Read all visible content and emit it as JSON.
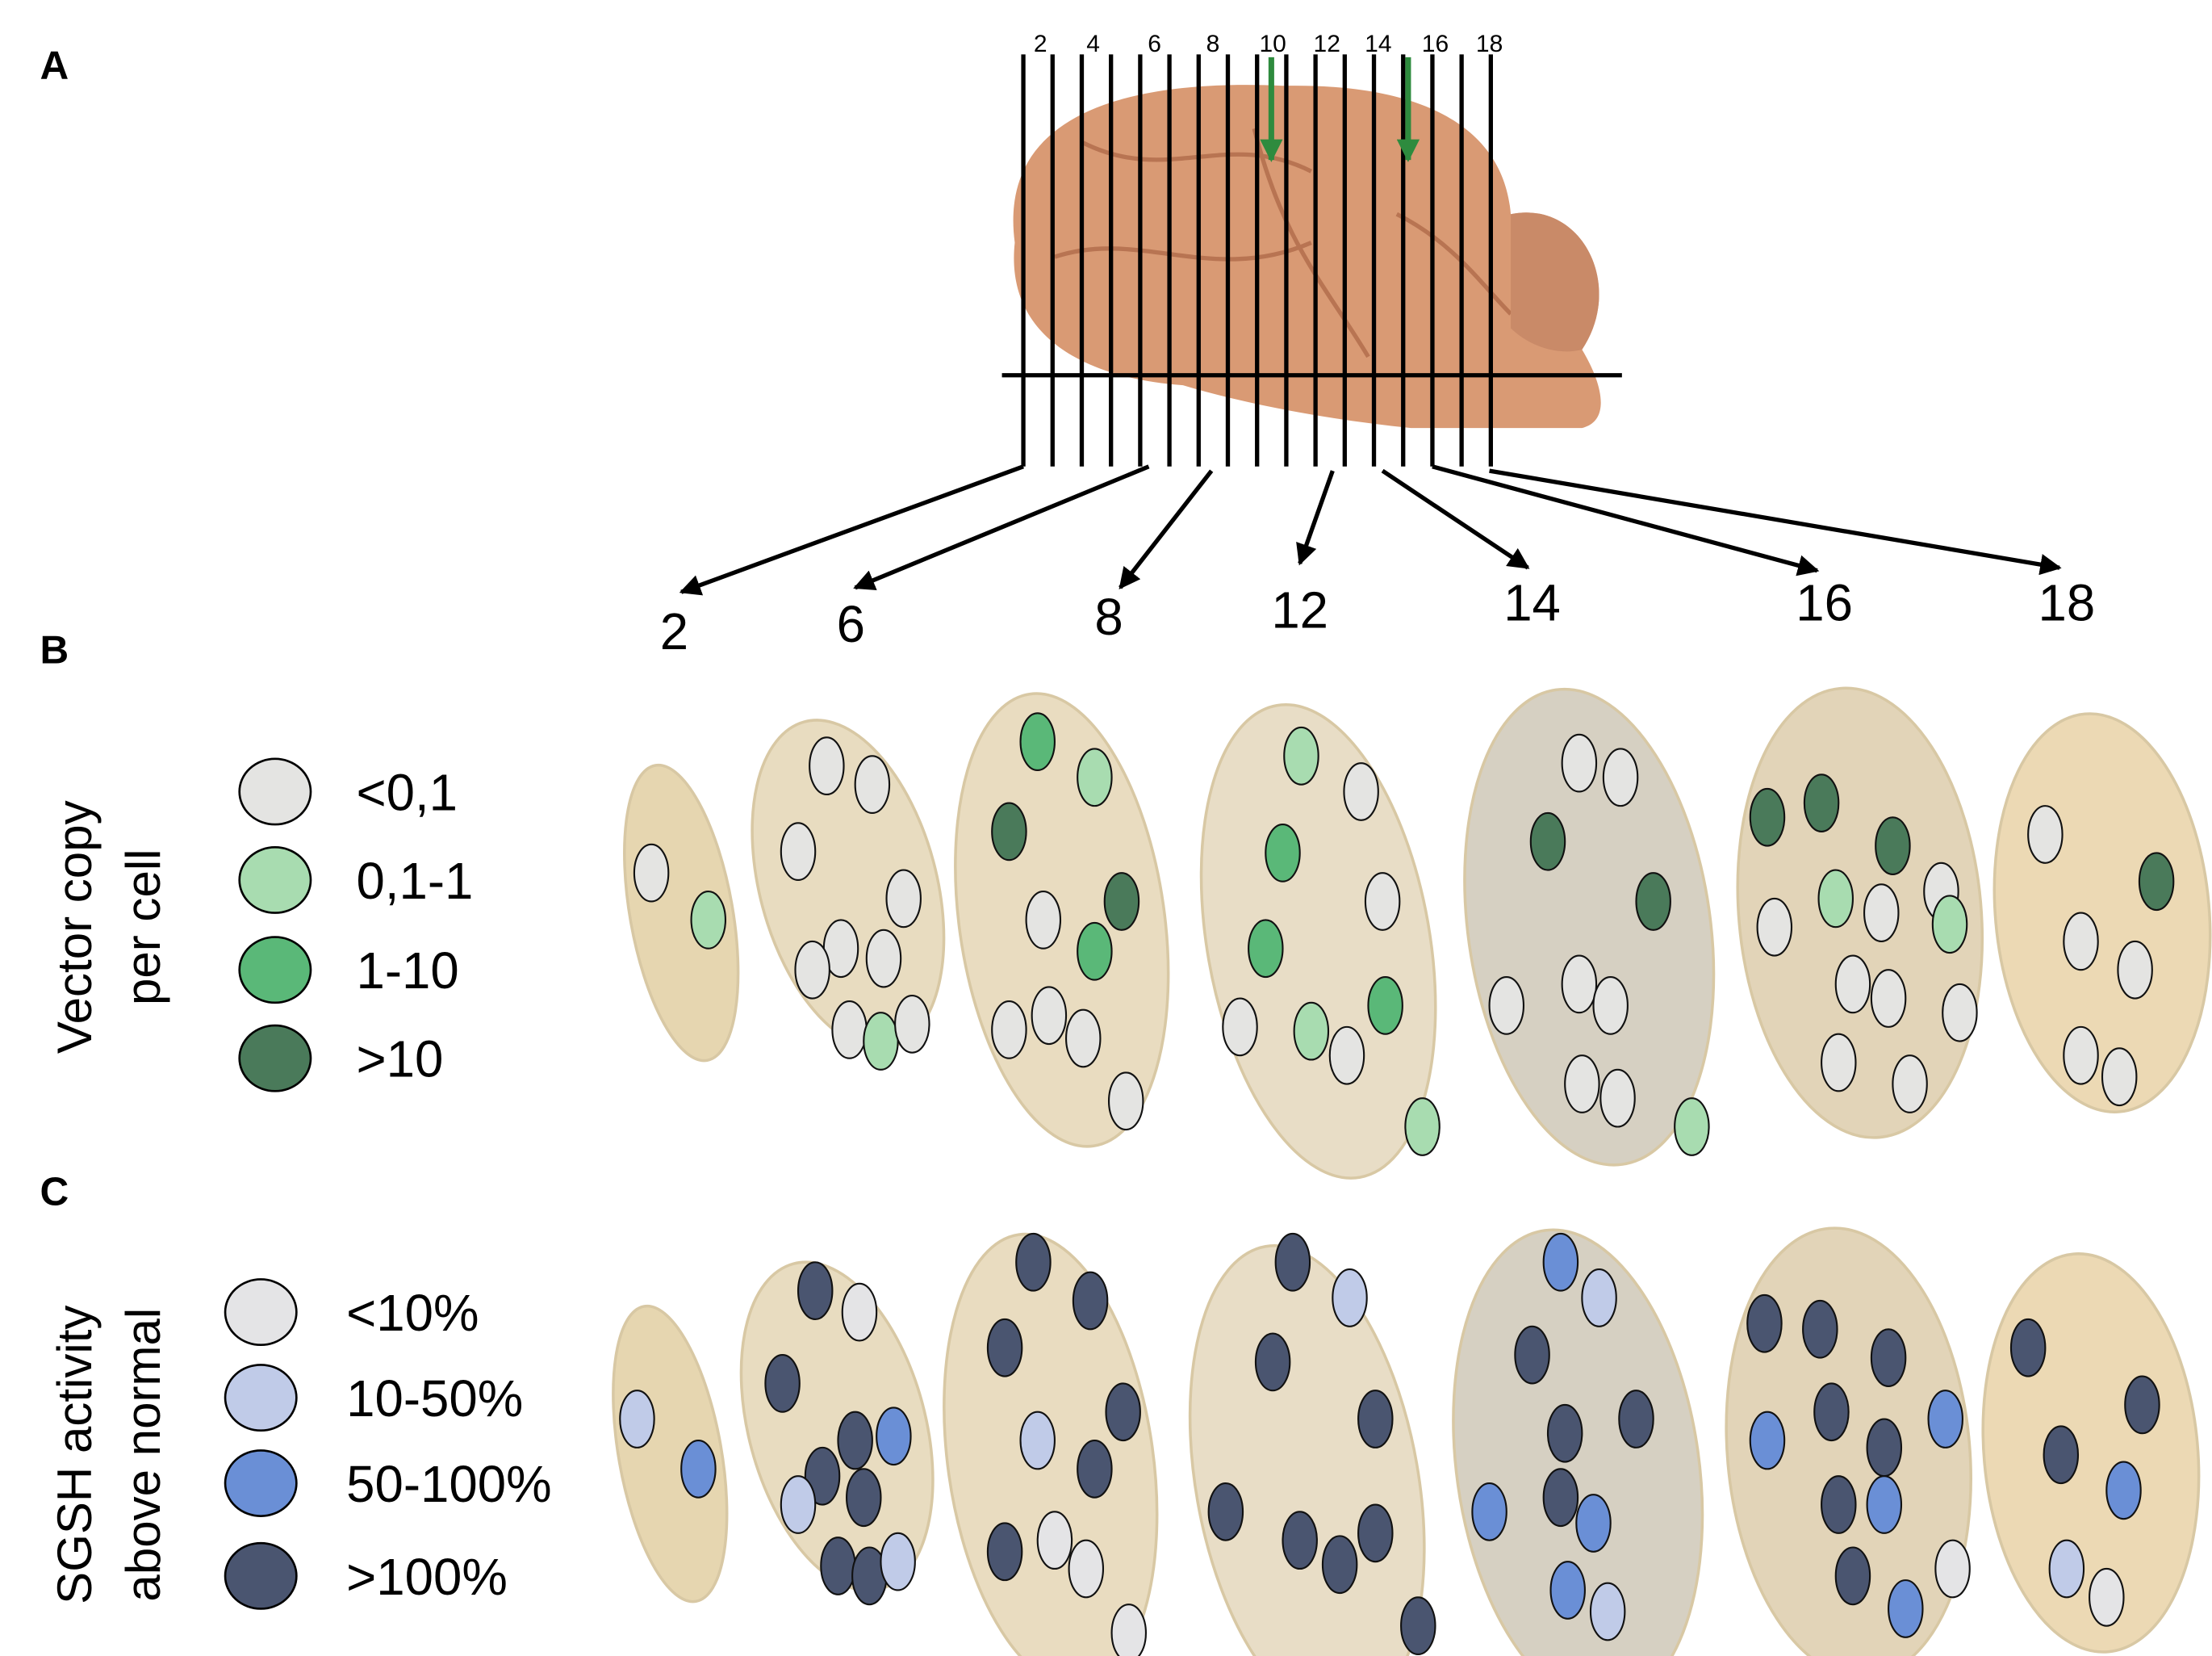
{
  "panels": {
    "a": "A",
    "b": "B",
    "c": "C"
  },
  "section_numbers": [
    2,
    4,
    6,
    8,
    10,
    12,
    14,
    16,
    18
  ],
  "selected_sections": [
    2,
    6,
    8,
    12,
    14,
    16,
    18
  ],
  "vector_legend": {
    "title": [
      "Vector copy",
      "per cell"
    ],
    "items": [
      "<0,1",
      "0,1-1",
      "1-10",
      ">10"
    ]
  },
  "sgsh_legend": {
    "title": [
      "SGSH activity",
      "above normal"
    ],
    "items": [
      "<10%",
      "10-50%",
      "50-100%",
      ">100%"
    ]
  }
}
